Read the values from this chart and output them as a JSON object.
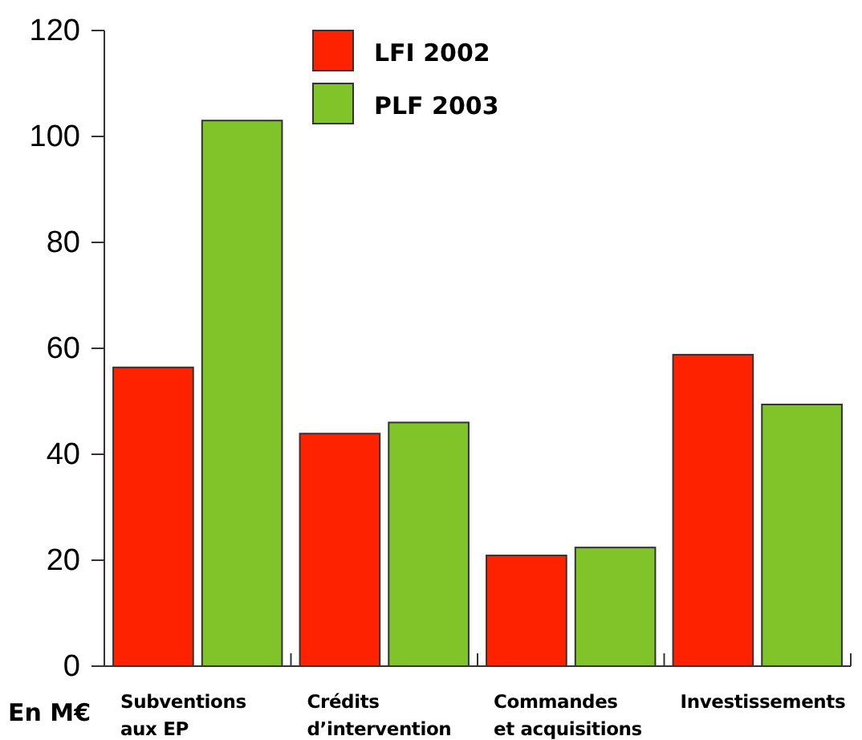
{
  "chart_data": {
    "type": "bar",
    "ylabel": "En M€",
    "categories": [
      "Subventions aux EP",
      "Crédits d’intervention",
      "Commandes et acquisitions",
      "Investissements"
    ],
    "series": [
      {
        "name": "LFI 2002",
        "color": "#ff2200",
        "values": [
          56.4,
          43.9,
          20.9,
          58.8
        ]
      },
      {
        "name": "PLF 2003",
        "color": "#80c42a",
        "values": [
          103,
          46,
          22.4,
          49.4
        ]
      }
    ],
    "ylim": [
      0,
      120
    ],
    "yticks": [
      0,
      20,
      40,
      60,
      80,
      100,
      120
    ],
    "grid": false,
    "legend": "top"
  }
}
